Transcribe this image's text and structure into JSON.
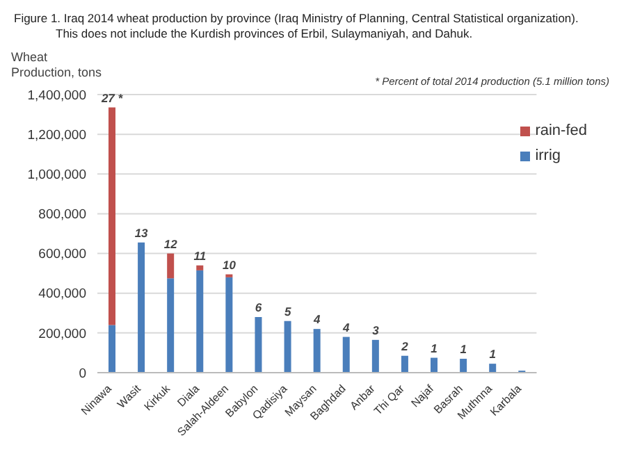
{
  "chart_data": {
    "type": "bar",
    "title": "Figure 1.  Iraq 2014 wheat production by province (Iraq Ministry of Planning, Central Statistical organization).\nThis does not include the Kurdish provinces of Erbil, Sulaymaniyah, and Dahuk.",
    "ylabel": "Wheat\nProduction, tons",
    "annotations": [
      "* Percent of total 2014 production (5.1 million tons)",
      {
        "text": "27 *",
        "x": "Ninawa",
        "y": 1335000
      },
      {
        "text": "13",
        "x": "Wasit",
        "y": 655000
      },
      {
        "text": "12",
        "x": "Kirkuk",
        "y": 600000
      },
      {
        "text": "11",
        "x": "Diala",
        "y": 540000
      },
      {
        "text": "10",
        "x": "Salah-Aldeen",
        "y": 495000
      },
      {
        "text": "6",
        "x": "Babylon",
        "y": 280000
      },
      {
        "text": "5",
        "x": "Qadisiya",
        "y": 260000
      },
      {
        "text": "4",
        "x": "Maysan",
        "y": 220000
      },
      {
        "text": "4",
        "x": "Baghdad",
        "y": 180000
      },
      {
        "text": "3",
        "x": "Anbar",
        "y": 165000
      },
      {
        "text": "2",
        "x": "Thi Qar",
        "y": 85000
      },
      {
        "text": "1",
        "x": "Najaf",
        "y": 75000
      },
      {
        "text": "1",
        "x": "Basrah",
        "y": 70000
      },
      {
        "text": "1",
        "x": "Muthnna",
        "y": 45000
      }
    ],
    "categories": [
      "Ninawa",
      "Wasit",
      "Kirkuk",
      "Diala",
      "Salah-Aldeen",
      "Babylon",
      "Qadisiya",
      "Maysan",
      "Baghdad",
      "Anbar",
      "Thi Qar",
      "Najaf",
      "Basrah",
      "Muthnna",
      "Karbala"
    ],
    "series": [
      {
        "name": "irrig",
        "color": "#4a7ebb",
        "values": [
          240000,
          655000,
          475000,
          515000,
          480000,
          280000,
          260000,
          220000,
          180000,
          165000,
          85000,
          75000,
          70000,
          45000,
          10000
        ]
      },
      {
        "name": "rain-fed",
        "color": "#c0504d",
        "values": [
          1095000,
          0,
          125000,
          25000,
          15000,
          0,
          0,
          0,
          0,
          0,
          0,
          0,
          0,
          0,
          0
        ]
      }
    ],
    "stacked": true,
    "ylim": [
      0,
      1400000
    ],
    "yticks": [
      0,
      {
        "value": 200000,
        "label": "200,000"
      },
      {
        "value": 400000,
        "label": "400,000"
      },
      {
        "value": 600000,
        "label": "600,000"
      },
      {
        "value": 800000,
        "label": "800,000"
      },
      {
        "value": 1000000,
        "label": "1,000,000"
      },
      {
        "value": 1200000,
        "label": "1,200,000"
      },
      {
        "value": 1400000,
        "label": "1,400,000"
      }
    ],
    "grid": "y",
    "legend": "top right"
  }
}
